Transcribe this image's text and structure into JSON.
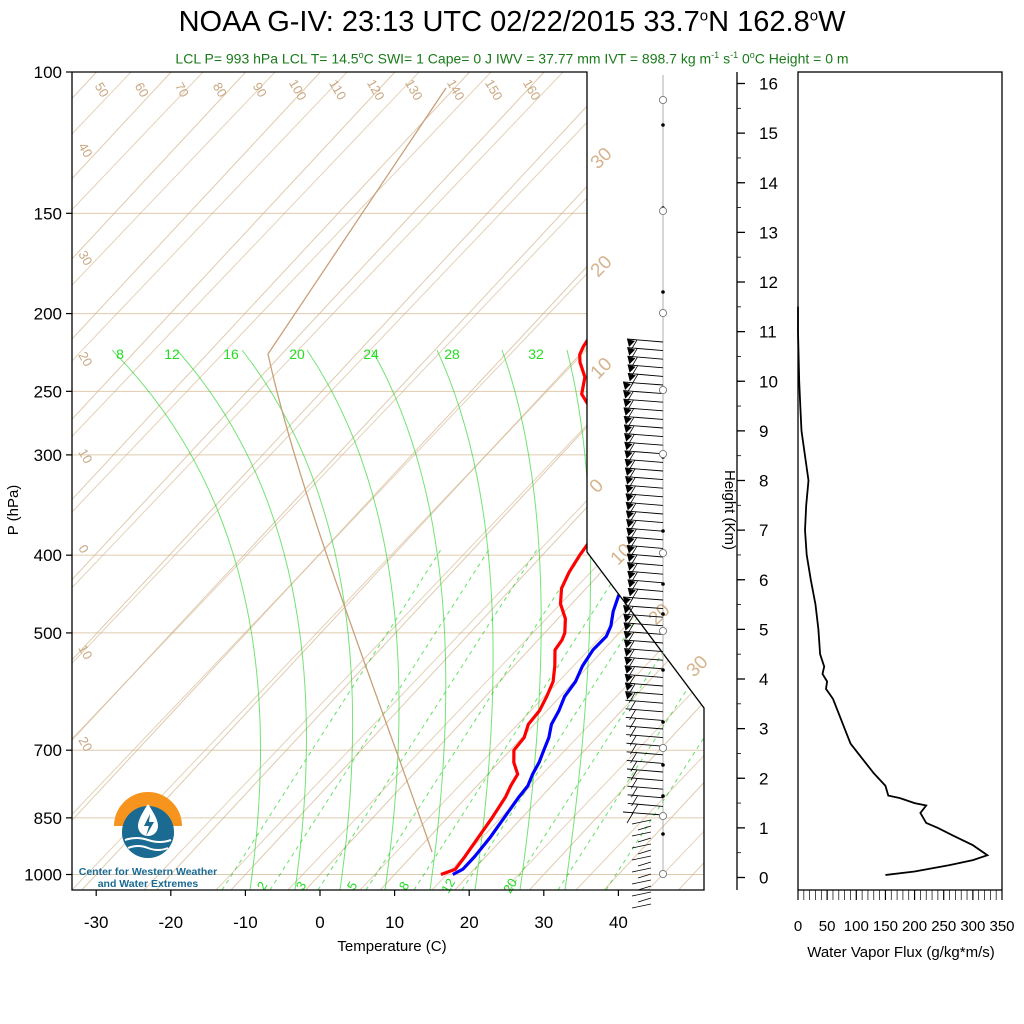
{
  "title": {
    "prefix": "NOAA G-IV: 23:13 UTC 02/22/2015  33.7",
    "lat_suffix": "N 162.8",
    "lon_suffix": "W",
    "degree": "o"
  },
  "subtitle": {
    "part1": "LCL P= 993 hPa  LCL T= 14.5",
    "part2": "C  SWI= 1  Cape= 0 J  IWV = 37.77 mm  IVT = 898.7 kg m",
    "exp1": "-1",
    "part3": " s",
    "exp2": "-1",
    "part4": "  0",
    "part5": "C Height = 0 m"
  },
  "logo": {
    "line1": "Center for Western Weather",
    "line2": "and Water Extremes"
  },
  "colors": {
    "temperature": "#ff0000",
    "dewpoint": "#0000ff",
    "isotherm_grid": "#d2b48c",
    "mixing_ratio": "#00cc00",
    "title_green": "#1a7a1a",
    "logo_orange": "#f7941d",
    "logo_blue": "#1a6a92"
  },
  "chart_data": [
    {
      "type": "line",
      "title": "",
      "xlabel": "Temperature (C)",
      "ylabel": "P (hPa)",
      "xlim": [
        -35,
        50
      ],
      "ylim": [
        1050,
        100
      ],
      "y_scale": "log (skew-T log-P)",
      "x_ticks": [
        -30,
        -20,
        -10,
        0,
        10,
        20,
        30,
        40
      ],
      "y_ticks": [
        100,
        150,
        200,
        250,
        300,
        400,
        500,
        700,
        850,
        1000
      ],
      "isotherm_labels": [
        -50,
        -60,
        -70,
        -80,
        -90,
        -100,
        -110,
        -120,
        -130,
        -140,
        -150,
        -160
      ],
      "isotherm_labels_printed": [
        "50",
        "60",
        "70",
        "80",
        "90",
        "100",
        "110",
        "120",
        "130",
        "140",
        "150",
        "160"
      ],
      "isotherm_left_labels": [
        "40",
        "30",
        "20",
        "10",
        "0",
        "10",
        "20"
      ],
      "isotherm_right_labels": [
        "30",
        "20",
        "10",
        "0",
        "10",
        "20",
        "30"
      ],
      "mixing_ratio_top_labels": [
        "8",
        "12",
        "16",
        "20",
        "24",
        "28",
        "32"
      ],
      "mixing_ratio_bottom_labels": [
        "2",
        "3",
        "5",
        "8",
        "12",
        "20"
      ],
      "series": [
        {
          "color": "#ff0000",
          "points": [
            [
              16.2,
              1000
            ],
            [
              17.5,
              985
            ],
            [
              17.2,
              950
            ],
            [
              16.6,
              900
            ],
            [
              16.0,
              850
            ],
            [
              15.2,
              800
            ],
            [
              14.5,
              775
            ],
            [
              14.0,
              750
            ],
            [
              12.0,
              725
            ],
            [
              10.5,
              700
            ],
            [
              10.3,
              675
            ],
            [
              9.2,
              650
            ],
            [
              9.0,
              625
            ],
            [
              8.2,
              600
            ],
            [
              7.2,
              575
            ],
            [
              5.5,
              550
            ],
            [
              3.5,
              525
            ],
            [
              3.2,
              510
            ],
            [
              2.7,
              500
            ],
            [
              1.0,
              480
            ],
            [
              -1.5,
              460
            ],
            [
              -3.3,
              440
            ],
            [
              -4.3,
              420
            ],
            [
              -5.0,
              400
            ],
            [
              -5.5,
              380
            ],
            [
              -5.0,
              365
            ],
            [
              -5.5,
              350
            ],
            [
              -4.8,
              340
            ],
            [
              -5.5,
              330
            ],
            [
              -7.0,
              320
            ],
            [
              -10.0,
              310
            ],
            [
              -14.5,
              300
            ],
            [
              -17.0,
              290
            ],
            [
              -18.5,
              280
            ],
            [
              -19.8,
              270
            ],
            [
              -22.0,
              262
            ],
            [
              -24.8,
              252
            ],
            [
              -26.5,
              240
            ],
            [
              -29.0,
              230
            ],
            [
              -30.0,
              225
            ],
            [
              -30.5,
              220
            ],
            [
              -30.8,
              215
            ]
          ]
        },
        {
          "color": "#0000ff",
          "points": [
            [
              17.8,
              1000
            ],
            [
              18.5,
              985
            ],
            [
              18.5,
              950
            ],
            [
              18.2,
              900
            ],
            [
              17.6,
              850
            ],
            [
              17.0,
              800
            ],
            [
              16.8,
              775
            ],
            [
              16.0,
              750
            ],
            [
              15.4,
              725
            ],
            [
              14.5,
              700
            ],
            [
              13.6,
              675
            ],
            [
              12.3,
              650
            ],
            [
              11.6,
              625
            ],
            [
              10.6,
              600
            ],
            [
              10.2,
              575
            ],
            [
              9.2,
              550
            ],
            [
              8.6,
              525
            ],
            [
              8.7,
              505
            ],
            [
              8.0,
              490
            ],
            [
              6.5,
              470
            ],
            [
              5.3,
              450
            ],
            [
              4.2,
              430
            ],
            [
              3.4,
              410
            ],
            [
              2.7,
              395
            ],
            [
              2.5,
              380
            ],
            [
              2.0,
              365
            ],
            [
              1.0,
              350
            ],
            [
              -0.5,
              335
            ],
            [
              -2.5,
              320
            ],
            [
              -4.5,
              305
            ],
            [
              -7.0,
              290
            ],
            [
              -9.5,
              280
            ],
            [
              -12.2,
              268
            ],
            [
              -14.6,
              258
            ],
            [
              -16.8,
              248
            ],
            [
              -19.0,
              238
            ],
            [
              -21.0,
              228
            ],
            [
              -22.8,
              220
            ],
            [
              -23.7,
              215
            ],
            [
              -23.5,
              210
            ]
          ]
        }
      ]
    },
    {
      "type": "line",
      "title": "",
      "xlabel": "Water Vapor Flux (g/kg*m/s)",
      "ylabel": "Height (Km)",
      "xlim": [
        0,
        350
      ],
      "ylim": [
        -0.25,
        16.5
      ],
      "x_ticks": [
        0,
        50,
        100,
        150,
        200,
        250,
        300,
        350
      ],
      "y_ticks": [
        0,
        1,
        2,
        3,
        4,
        5,
        6,
        7,
        8,
        9,
        10,
        11,
        12,
        13,
        14,
        15,
        16
      ],
      "series": [
        {
          "color": "#000000",
          "points": [
            [
              150,
              0.05
            ],
            [
              200,
              0.12
            ],
            [
              260,
              0.25
            ],
            [
              300,
              0.35
            ],
            [
              325,
              0.45
            ],
            [
              300,
              0.65
            ],
            [
              265,
              0.85
            ],
            [
              240,
              1.0
            ],
            [
              220,
              1.1
            ],
            [
              210,
              1.3
            ],
            [
              220,
              1.45
            ],
            [
              200,
              1.5
            ],
            [
              175,
              1.6
            ],
            [
              155,
              1.65
            ],
            [
              150,
              1.85
            ],
            [
              130,
              2.1
            ],
            [
              110,
              2.4
            ],
            [
              90,
              2.7
            ],
            [
              80,
              3.0
            ],
            [
              70,
              3.3
            ],
            [
              60,
              3.6
            ],
            [
              48,
              3.8
            ],
            [
              50,
              3.95
            ],
            [
              42,
              4.1
            ],
            [
              45,
              4.25
            ],
            [
              38,
              4.5
            ],
            [
              35,
              5.0
            ],
            [
              30,
              5.5
            ],
            [
              22,
              6.0
            ],
            [
              15,
              6.5
            ],
            [
              12,
              7.0
            ],
            [
              14,
              7.5
            ],
            [
              18,
              8.0
            ],
            [
              12,
              8.5
            ],
            [
              6,
              9.0
            ],
            [
              4,
              9.5
            ],
            [
              2,
              10.0
            ],
            [
              1,
              10.5
            ],
            [
              0,
              11.0
            ],
            [
              0,
              11.5
            ]
          ]
        }
      ]
    }
  ]
}
